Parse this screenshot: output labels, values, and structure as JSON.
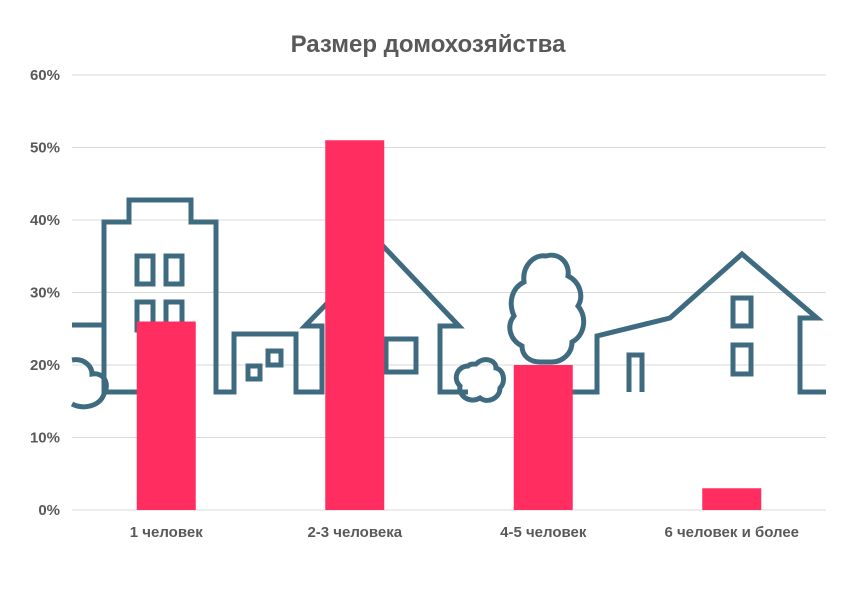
{
  "chart_data": {
    "type": "bar",
    "title": "Размер домохозяйства",
    "categories": [
      "1 человек",
      "2-3 человека",
      "4-5 человек",
      "6 человек и более"
    ],
    "values": [
      26,
      51,
      20,
      3
    ],
    "y_ticks": [
      "0%",
      "10%",
      "20%",
      "30%",
      "40%",
      "50%",
      "60%"
    ],
    "ylim": [
      0,
      60
    ],
    "grid": true,
    "bar_color": "#ff2d60",
    "background_illustration": "house-silhouettes",
    "illustration_color": "#3f6b80"
  }
}
